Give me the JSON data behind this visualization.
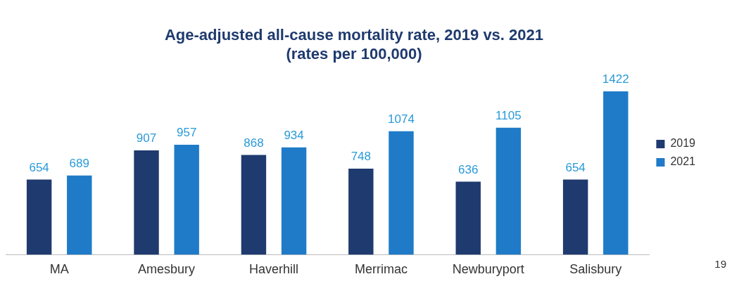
{
  "chart_data": {
    "type": "bar",
    "title": "Age-adjusted all-cause mortality rate, 2019 vs. 2021\n(rates per 100,000)",
    "categories": [
      "MA",
      "Amesbury",
      "Haverhill",
      "Merrimac",
      "Newburyport",
      "Salisbury"
    ],
    "series": [
      {
        "name": "2019",
        "color": "#1f3a6e",
        "values": [
          654,
          907,
          868,
          748,
          636,
          654
        ]
      },
      {
        "name": "2021",
        "color": "#1f7bc8",
        "values": [
          689,
          957,
          934,
          1074,
          1105,
          1422
        ]
      }
    ],
    "data_labels": true,
    "legend": "right",
    "grid": false,
    "annotations": [
      "19"
    ]
  }
}
